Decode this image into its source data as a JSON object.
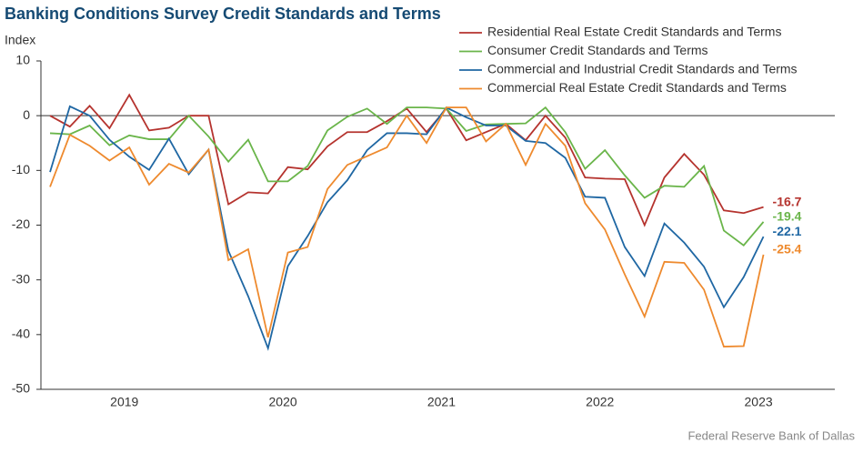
{
  "chart_data": {
    "type": "line",
    "title": "Banking Conditions Survey Credit Standards and Terms",
    "y_label": "Index",
    "source": "Federal Reserve Bank of Dallas",
    "x": [
      0,
      1,
      2,
      3,
      4,
      5,
      6,
      7,
      8,
      9,
      10,
      11,
      12,
      13,
      14,
      15,
      16,
      17,
      18,
      19,
      20,
      21,
      22,
      23,
      24,
      25,
      26,
      27,
      28,
      29,
      30,
      31,
      32,
      33,
      34,
      35,
      36
    ],
    "xlim": [
      -0.46,
      39.6
    ],
    "xticks": [
      {
        "value": 3.75,
        "label": "2019"
      },
      {
        "value": 11.75,
        "label": "2020"
      },
      {
        "value": 19.75,
        "label": "2021"
      },
      {
        "value": 27.75,
        "label": "2022"
      },
      {
        "value": 35.75,
        "label": "2023"
      }
    ],
    "ylim": [
      -50,
      10
    ],
    "yticks": [
      10,
      0,
      -10,
      -20,
      -30,
      -40,
      -50
    ],
    "legend": "top-right",
    "series": [
      {
        "name": "Residential Real Estate Credit Standards and Terms",
        "color": "#b5332e",
        "values": [
          0,
          -2,
          1.8,
          -2.3,
          3.8,
          -2.7,
          -2.2,
          0,
          0,
          -16.2,
          -14,
          -14.2,
          -9.4,
          -9.8,
          -5.6,
          -3,
          -3,
          -1,
          1.3,
          -3,
          1.3,
          -4.5,
          -3,
          -1.5,
          -4.5,
          0,
          -4,
          -11.3,
          -11.5,
          -11.6,
          -20,
          -11.3,
          -7,
          -10.8,
          -17.3,
          -17.8,
          -16.7
        ]
      },
      {
        "name": "Consumer Credit Standards and Terms",
        "color": "#6ab54a",
        "values": [
          -3.2,
          -3.4,
          -1.8,
          -5.4,
          -3.6,
          -4.3,
          -4.3,
          0,
          -3.8,
          -8.4,
          -4.4,
          -12,
          -12,
          -9.2,
          -2.7,
          -0.2,
          1.3,
          -1.5,
          1.5,
          1.5,
          1.3,
          -2.8,
          -1.6,
          -1.5,
          -1.4,
          1.5,
          -3,
          -9.7,
          -6.3,
          -10.9,
          -15,
          -12.8,
          -13,
          -9.2,
          -21,
          -23.7,
          -19.4
        ]
      },
      {
        "name": "Commercial and Industrial Credit Standards and Terms",
        "color": "#1f67a3",
        "values": [
          -10.3,
          1.7,
          0,
          -4.4,
          -7.5,
          -9.9,
          -4.2,
          -10.7,
          -6.2,
          -24.7,
          -33,
          -42.5,
          -27.5,
          -22,
          -15.8,
          -11.8,
          -6.3,
          -3.2,
          -3.2,
          -3.4,
          1.5,
          -0.3,
          -1.8,
          -1.8,
          -4.6,
          -5,
          -7.7,
          -14.8,
          -15,
          -24,
          -29.3,
          -19.7,
          -23.2,
          -27.6,
          -35,
          -29.5,
          -22.1
        ]
      },
      {
        "name": "Commercial Real Estate Credit Standards and Terms",
        "color": "#ee8a2e",
        "values": [
          -13,
          -3.5,
          -5.5,
          -8.2,
          -5.8,
          -12.6,
          -8.8,
          -10.4,
          -6.2,
          -26.4,
          -24.4,
          -40.5,
          -25,
          -24,
          -13.4,
          -9,
          -7.4,
          -5.8,
          0,
          -5,
          1.5,
          1.5,
          -4.7,
          -1.5,
          -9,
          -1.5,
          -5.5,
          -16,
          -20.8,
          -29,
          -36.7,
          -26.7,
          -26.9,
          -31.8,
          -42.2,
          -42.1,
          -25.4
        ]
      }
    ]
  }
}
